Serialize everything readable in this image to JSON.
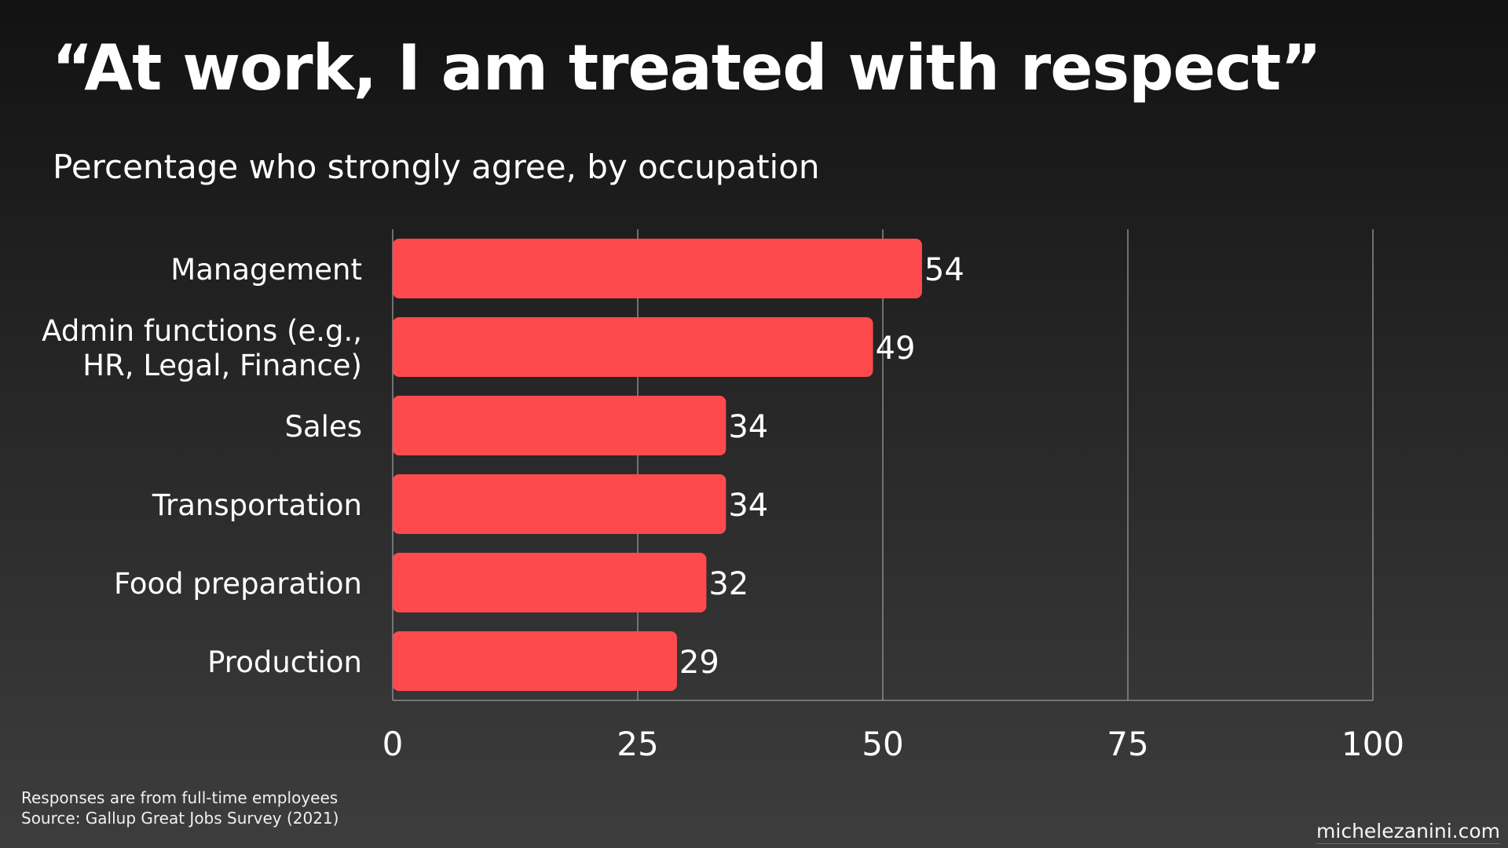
{
  "chart_data": {
    "type": "bar",
    "orientation": "horizontal",
    "title": "“At work, I am treated with respect”",
    "subtitle": "Percentage who strongly agree, by occupation",
    "categories": [
      [
        "Management"
      ],
      [
        "Admin functions (e.g.,",
        "HR, Legal, Finance)"
      ],
      [
        "Sales"
      ],
      [
        "Transportation"
      ],
      [
        "Food preparation"
      ],
      [
        "Production"
      ]
    ],
    "values": [
      54,
      49,
      34,
      34,
      32,
      29
    ],
    "xlim": [
      0,
      100
    ],
    "xticks": [
      0,
      25,
      50,
      75,
      100
    ],
    "grid": true,
    "bar_color": "#ff4a4d",
    "gridline_color": "#8a8a8a"
  },
  "footnotes": [
    "Responses are from full-time employees",
    "Source: Gallup Great Jobs Survey (2021)"
  ],
  "credit": "michelezanini.com"
}
